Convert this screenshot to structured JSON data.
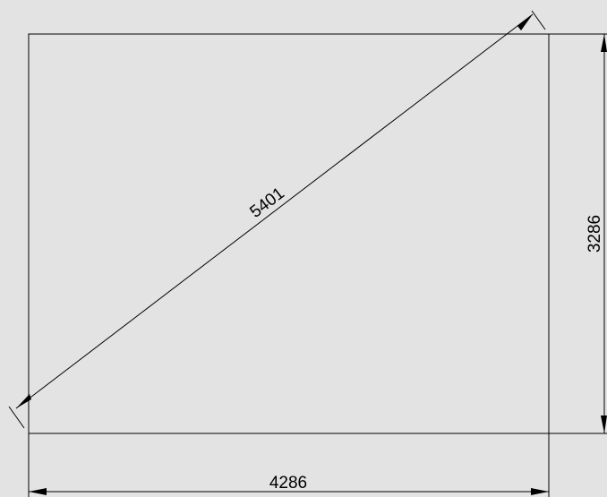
{
  "drawing": {
    "background": "#e3e3e3",
    "stroke_color": "#000000",
    "dimensions": {
      "width": "4286",
      "height": "3286",
      "diagonal": "5401"
    }
  }
}
